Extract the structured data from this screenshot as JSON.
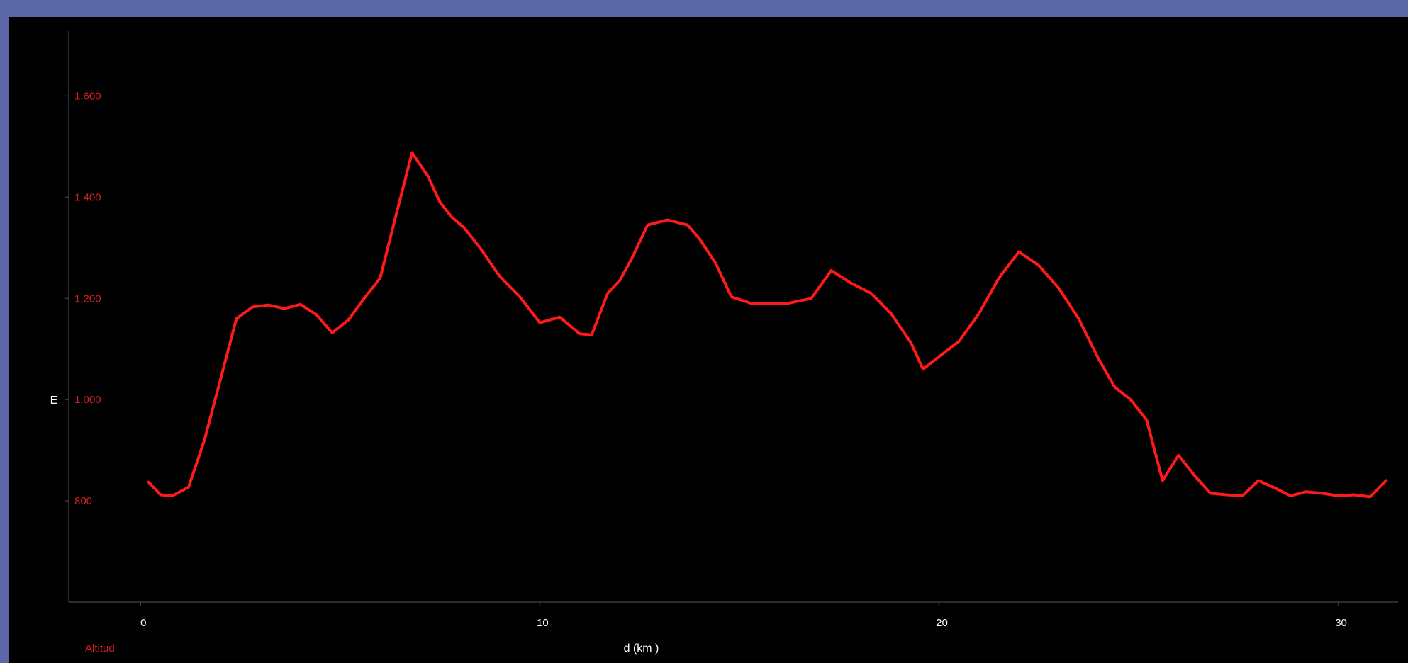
{
  "chart_data": {
    "type": "line",
    "title": "",
    "xlabel": "d (km )",
    "ylabel": "E",
    "corner_label": "Altitud",
    "xlim": [
      -1.8,
      31.5
    ],
    "ylim": [
      600,
      1700
    ],
    "x_ticks": [
      0,
      10,
      20,
      30
    ],
    "x_tick_labels": [
      "0",
      "10",
      "20",
      "30"
    ],
    "y_ticks": [
      800,
      1000,
      1200,
      1400,
      1600
    ],
    "y_tick_labels": [
      "800",
      "1.000",
      "1.200",
      "1.400",
      "1.600"
    ],
    "grid": false,
    "colors": {
      "line": "#ff1a1a",
      "tick_labels": "#d42020",
      "axis_text": "#ffffff",
      "axes": "#3a3a3a",
      "background": "#000000",
      "border": "#5b67a6"
    },
    "series": [
      {
        "x": [
          0.2,
          0.5,
          0.8,
          1.2,
          1.6,
          2.0,
          2.4,
          2.8,
          3.2,
          3.6,
          4.0,
          4.4,
          4.8,
          5.2,
          5.6,
          6.0,
          6.4,
          6.8,
          7.2,
          7.5,
          7.8,
          8.1,
          8.5,
          9.0,
          9.5,
          10.0,
          10.5,
          11.0,
          11.3,
          11.7,
          12.0,
          12.3,
          12.7,
          13.2,
          13.7,
          14.0,
          14.4,
          14.8,
          15.3,
          15.8,
          16.2,
          16.8,
          17.3,
          17.8,
          18.3,
          18.8,
          19.3,
          19.6,
          20.0,
          20.5,
          21.0,
          21.5,
          22.0,
          22.5,
          23.0,
          23.5,
          24.0,
          24.4,
          24.8,
          25.2,
          25.6,
          26.0,
          26.4,
          26.8,
          27.2,
          27.6,
          28.0,
          28.4,
          28.8,
          29.2,
          29.6,
          30.0,
          30.4,
          30.8,
          31.2
        ],
        "y": [
          837,
          812,
          810,
          827,
          920,
          1040,
          1160,
          1183,
          1187,
          1180,
          1188,
          1168,
          1132,
          1157,
          1200,
          1240,
          1365,
          1488,
          1441,
          1390,
          1360,
          1340,
          1300,
          1243,
          1203,
          1152,
          1163,
          1130,
          1128,
          1210,
          1235,
          1278,
          1345,
          1355,
          1345,
          1318,
          1270,
          1203,
          1190,
          1190,
          1190,
          1200,
          1255,
          1230,
          1210,
          1170,
          1112,
          1060,
          1085,
          1115,
          1170,
          1240,
          1292,
          1265,
          1220,
          1160,
          1080,
          1025,
          1000,
          960,
          840,
          890,
          850,
          815,
          812,
          810,
          840,
          826,
          810,
          818,
          815,
          810,
          812,
          808,
          840
        ]
      }
    ]
  }
}
